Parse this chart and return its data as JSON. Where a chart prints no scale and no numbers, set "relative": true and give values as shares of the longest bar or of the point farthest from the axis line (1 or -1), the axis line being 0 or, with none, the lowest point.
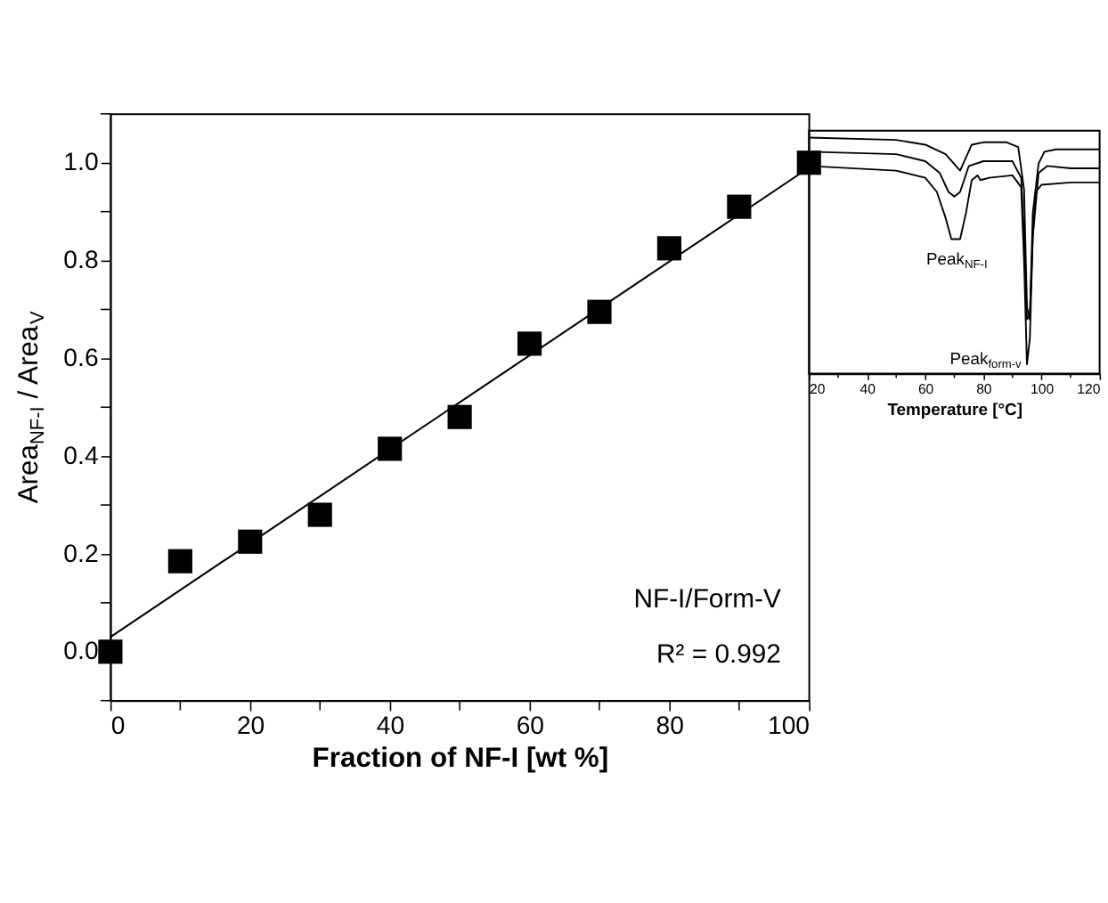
{
  "chart_data": [
    {
      "type": "scatter",
      "xlabel": "Fraction of NF-I [wt %]",
      "ylabel": "Area$_{NF-I}$ / Area$_{V}$",
      "xlim": [
        0,
        100
      ],
      "ylim": [
        -0.1,
        1.1
      ],
      "xticks": [
        0,
        {
          "value": 10,
          "label": null
        },
        20,
        {
          "value": 30,
          "label": null
        },
        40,
        {
          "value": 50,
          "label": null
        },
        60,
        {
          "value": 70,
          "label": null
        },
        80,
        {
          "value": 90,
          "label": null
        },
        100
      ],
      "yticks": [
        {
          "value": -0.1,
          "label": null
        },
        {
          "value": 0,
          "label": "0.0"
        },
        {
          "value": 0.1,
          "label": null
        },
        0.2,
        {
          "value": 0.3,
          "label": null
        },
        0.4,
        {
          "value": 0.5,
          "label": null
        },
        0.6,
        {
          "value": 0.7,
          "label": null
        },
        0.8,
        {
          "value": 0.9,
          "label": null
        },
        {
          "value": 1,
          "label": "1.0"
        },
        {
          "value": 1.1,
          "label": null
        }
      ],
      "x": [
        0,
        10,
        20,
        30,
        40,
        50,
        60,
        70,
        80,
        90,
        100
      ],
      "series": [
        {
          "type": "scatter",
          "color": "#000000",
          "marker": "square",
          "values": [
            0.0,
            0.185,
            0.225,
            0.28,
            0.415,
            0.48,
            0.63,
            0.695,
            0.825,
            0.91,
            1.0
          ]
        },
        {
          "type": "line",
          "color": "#000000",
          "line_style": "solid",
          "x": [
            0,
            100
          ],
          "values": [
            0.03,
            0.99
          ]
        }
      ],
      "annotations": [
        "NF-I/Form-V",
        "R² = 0.992"
      ],
      "grid": false
    },
    {
      "type": "line",
      "xlabel": "Temperature [°C]",
      "relative": true,
      "xlim": [
        20,
        120
      ],
      "xticks": [
        20,
        {
          "value": 30,
          "label": null
        },
        40,
        {
          "value": 50,
          "label": null
        },
        60,
        {
          "value": 70,
          "label": null
        },
        80,
        {
          "value": 90,
          "label": null
        },
        100,
        {
          "value": 110,
          "label": null
        },
        120
      ],
      "series": [
        {
          "color": "#000000",
          "x": [
            20,
            50,
            60,
            67,
            72,
            76,
            80,
            88,
            92,
            94,
            95,
            96,
            97,
            99,
            101,
            105,
            120
          ],
          "values": [
            1.0,
            0.99,
            0.97,
            0.93,
            0.86,
            0.97,
            0.98,
            0.98,
            0.96,
            0.78,
            0.28,
            0.23,
            0.68,
            0.89,
            0.94,
            0.95,
            0.95
          ]
        },
        {
          "color": "#000000",
          "x": [
            20,
            50,
            60,
            65,
            68,
            70,
            72,
            75,
            80,
            90,
            93,
            94,
            95,
            96,
            97,
            99,
            102,
            110,
            120
          ],
          "values": [
            0.94,
            0.93,
            0.9,
            0.85,
            0.77,
            0.75,
            0.77,
            0.88,
            0.9,
            0.9,
            0.83,
            0.58,
            0.23,
            0.25,
            0.58,
            0.85,
            0.88,
            0.87,
            0.87
          ]
        },
        {
          "color": "#000000",
          "x": [
            20,
            50,
            60,
            64,
            67,
            69,
            72,
            74,
            76,
            78,
            79,
            82,
            90,
            93,
            94,
            95,
            96,
            97,
            98,
            100,
            110,
            120
          ],
          "values": [
            0.88,
            0.86,
            0.83,
            0.77,
            0.66,
            0.57,
            0.57,
            0.68,
            0.82,
            0.84,
            0.82,
            0.83,
            0.84,
            0.79,
            0.48,
            0.04,
            0.15,
            0.58,
            0.77,
            0.8,
            0.81,
            0.81
          ]
        }
      ],
      "annotations": [
        "Peak$_{NF-I}$",
        "Peak$_{form-v}$"
      ],
      "grid": false
    }
  ]
}
